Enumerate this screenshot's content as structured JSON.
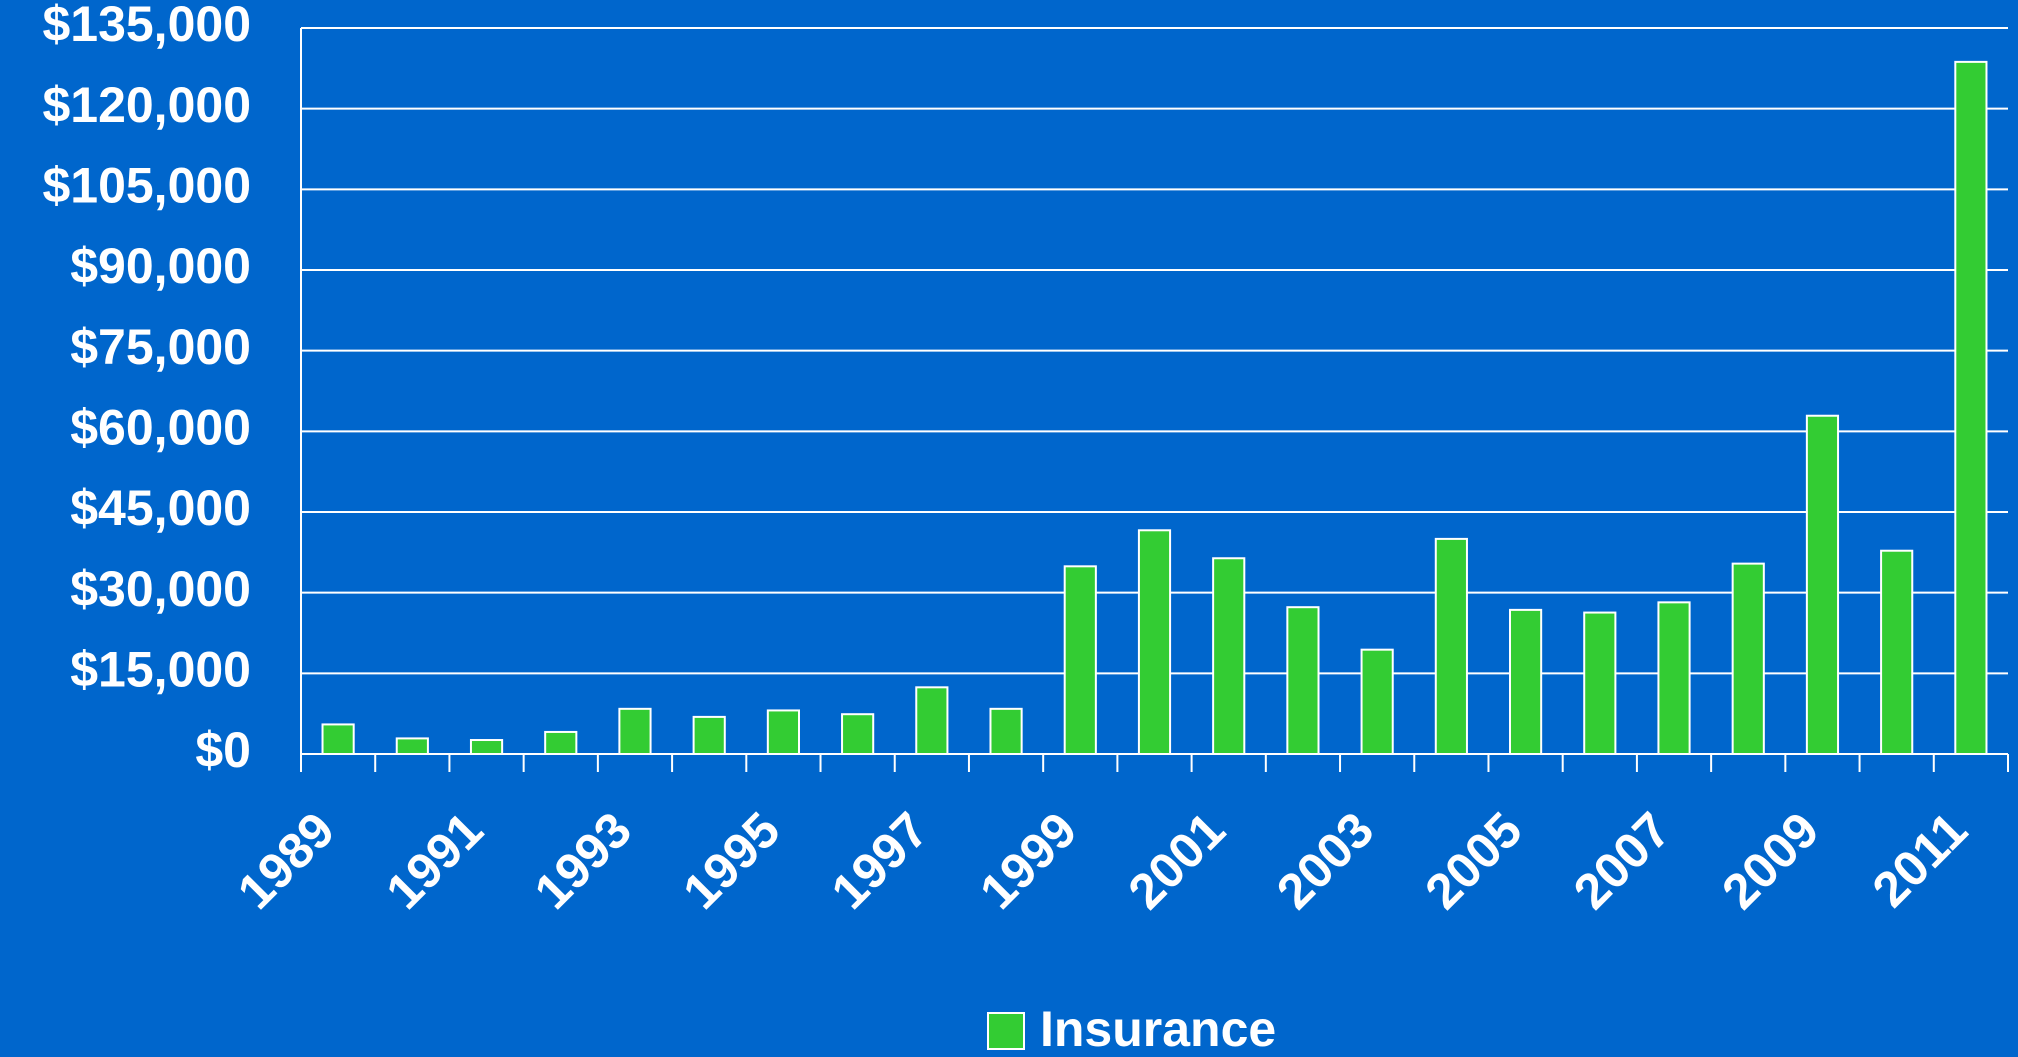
{
  "chart_data": {
    "type": "bar",
    "categories": [
      "1989",
      null,
      "1991",
      null,
      "1993",
      null,
      "1995",
      null,
      "1997",
      null,
      "1999",
      null,
      "2001",
      null,
      "2003",
      null,
      "2005",
      null,
      "2007",
      null,
      "2009",
      null,
      "2011"
    ],
    "series": [
      {
        "name": "Insurance",
        "color": "#33cc33",
        "values": [
          5500,
          2900,
          2600,
          4100,
          8400,
          6900,
          8100,
          7400,
          12400,
          8400,
          34900,
          41600,
          36400,
          27300,
          19400,
          40000,
          26800,
          26300,
          28200,
          35400,
          62900,
          37800,
          128700
        ]
      }
    ],
    "ylim": [
      0,
      135000
    ],
    "yticks": [
      {
        "value": 0,
        "label": "$0"
      },
      {
        "value": 15000,
        "label": "$15,000"
      },
      {
        "value": 30000,
        "label": "$30,000"
      },
      {
        "value": 45000,
        "label": "$45,000"
      },
      {
        "value": 60000,
        "label": "$60,000"
      },
      {
        "value": 75000,
        "label": "$75,000"
      },
      {
        "value": 90000,
        "label": "$90,000"
      },
      {
        "value": 105000,
        "label": "$105,000"
      },
      {
        "value": 120000,
        "label": "$120,000"
      },
      {
        "value": 135000,
        "label": "$135,000"
      }
    ],
    "grid": true,
    "legend": "bottom"
  }
}
